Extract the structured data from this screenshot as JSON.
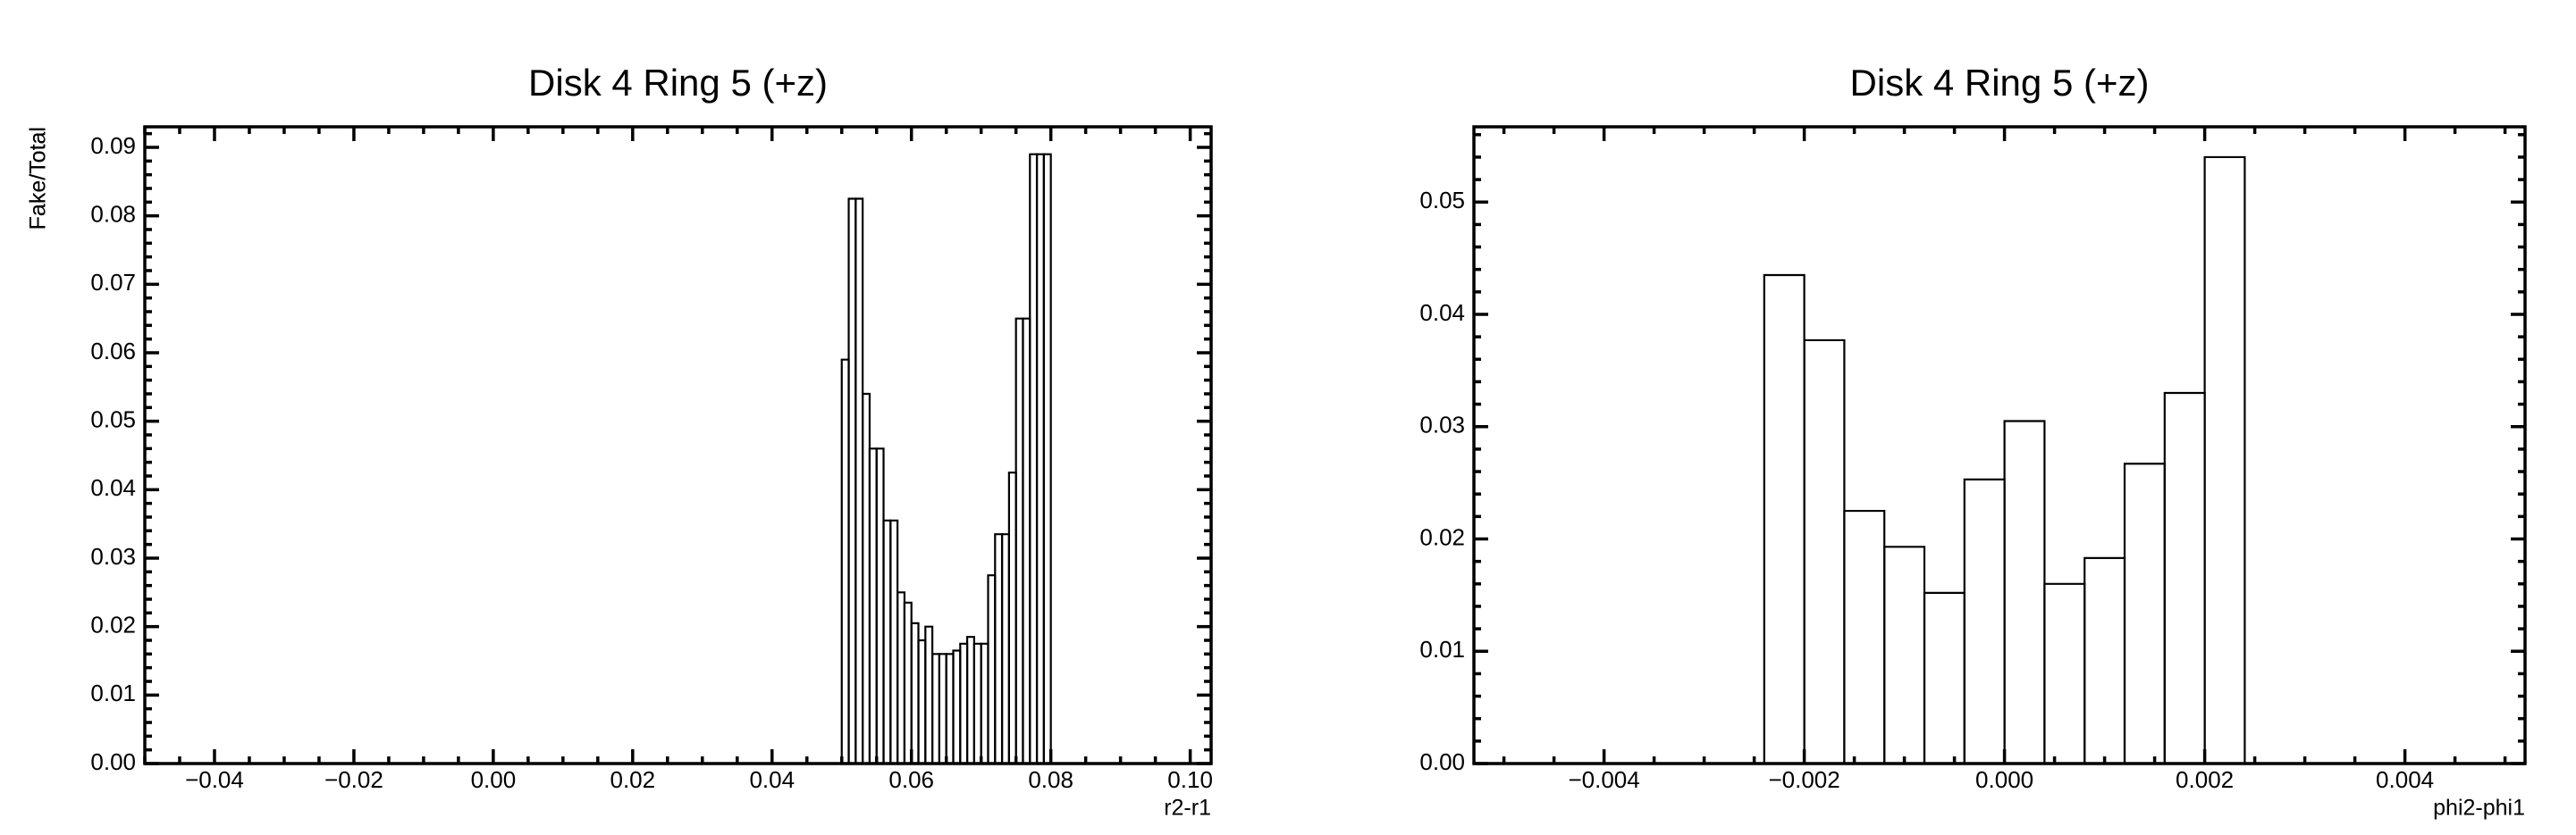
{
  "chart_data": [
    {
      "type": "histogram",
      "title": "Disk 4 Ring 5 (+z)",
      "x_label": "r2-r1",
      "y_label": "Fake/Total",
      "color": "#000000",
      "bins": [
        0.05,
        0.051,
        0.052,
        0.053,
        0.054,
        0.055,
        0.056,
        0.057,
        0.058,
        0.059,
        0.06,
        0.061,
        0.062,
        0.063,
        0.064,
        0.065,
        0.066,
        0.067,
        0.068,
        0.069,
        0.07,
        0.071,
        0.072,
        0.073,
        0.074,
        0.075,
        0.076,
        0.077,
        0.078,
        0.079,
        0.08
      ],
      "values": [
        0.059,
        0.0825,
        0.0825,
        0.054,
        0.046,
        0.046,
        0.0355,
        0.0355,
        0.025,
        0.0235,
        0.0205,
        0.018,
        0.02,
        0.016,
        0.016,
        0.016,
        0.0165,
        0.0175,
        0.0185,
        0.0175,
        0.0175,
        0.0275,
        0.0335,
        0.0335,
        0.0425,
        0.065,
        0.065,
        0.089,
        0.089,
        0.089
      ],
      "xlim": [
        -0.05,
        0.103
      ],
      "ylim": [
        0,
        0.093
      ],
      "xticks": [
        {
          "value": -0.04,
          "label": "−0.04"
        },
        {
          "value": -0.02,
          "label": "−0.02"
        },
        {
          "value": 0,
          "label": "0.00"
        },
        {
          "value": 0.02,
          "label": "0.02"
        },
        {
          "value": 0.04,
          "label": "0.04"
        },
        {
          "value": 0.06,
          "label": "0.06"
        },
        {
          "value": 0.08,
          "label": "0.08"
        },
        {
          "value": 0.1,
          "label": "0.10"
        }
      ],
      "yticks": [
        {
          "value": 0,
          "label": "0.00"
        },
        {
          "value": 0.01,
          "label": "0.01"
        },
        {
          "value": 0.02,
          "label": "0.02"
        },
        {
          "value": 0.03,
          "label": "0.03"
        },
        {
          "value": 0.04,
          "label": "0.04"
        },
        {
          "value": 0.05,
          "label": "0.05"
        },
        {
          "value": 0.06,
          "label": "0.06"
        },
        {
          "value": 0.07,
          "label": "0.07"
        },
        {
          "value": 0.08,
          "label": "0.08"
        },
        {
          "value": 0.09,
          "label": "0.09"
        }
      ]
    },
    {
      "type": "histogram",
      "title": "Disk 4 Ring 5 (+z)",
      "x_label": "phi2-phi1",
      "y_label": "Fake/Total",
      "color": "#000000",
      "bins": [
        -0.0024,
        -0.002,
        -0.0016,
        -0.0012,
        -0.0008,
        -0.0004,
        0,
        0.0004,
        0.0008,
        0.0012,
        0.0016,
        0.002,
        0.0024
      ],
      "values": [
        0.0435,
        0.0377,
        0.0225,
        0.0193,
        0.0152,
        0.0253,
        0.0305,
        0.016,
        0.0183,
        0.0267,
        0.033,
        0.054
      ],
      "xlim": [
        -0.0053,
        0.0052
      ],
      "ylim": [
        0,
        0.0567
      ],
      "xticks": [
        {
          "value": -0.004,
          "label": "−0.004"
        },
        {
          "value": -0.002,
          "label": "−0.002"
        },
        {
          "value": 0,
          "label": "0.000"
        },
        {
          "value": 0.002,
          "label": "0.002"
        },
        {
          "value": 0.004,
          "label": "0.004"
        }
      ],
      "yticks": [
        {
          "value": 0,
          "label": "0.00"
        },
        {
          "value": 0.01,
          "label": "0.01"
        },
        {
          "value": 0.02,
          "label": "0.02"
        },
        {
          "value": 0.03,
          "label": "0.03"
        },
        {
          "value": 0.04,
          "label": "0.04"
        },
        {
          "value": 0.05,
          "label": "0.05"
        }
      ]
    }
  ]
}
